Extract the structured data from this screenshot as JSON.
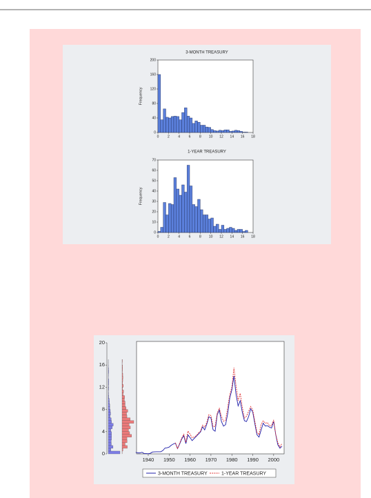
{
  "chart_data": [
    {
      "type": "histogram",
      "title": "3-MONTH TREASURY",
      "y_label": "Frequency",
      "color": "#5b80dc",
      "bins": [
        0,
        0.5,
        1,
        1.5,
        2,
        2.5,
        3,
        3.5,
        4,
        4.5,
        5,
        5.5,
        6,
        6.5,
        7,
        7.5,
        8,
        8.5,
        9,
        9.5,
        10,
        10.5,
        11,
        11.5,
        12,
        12.5,
        13,
        13.5,
        14,
        14.5,
        15,
        15.5,
        16,
        16.5,
        17
      ],
      "values": [
        160,
        35,
        65,
        42,
        40,
        44,
        45,
        44,
        35,
        55,
        68,
        45,
        40,
        25,
        32,
        28,
        20,
        20,
        15,
        14,
        8,
        5,
        4,
        6,
        5,
        7,
        7,
        3,
        4,
        6,
        5,
        3,
        1,
        1
      ],
      "xlim": [
        0,
        18
      ],
      "xticks": [
        0,
        2,
        4,
        6,
        8,
        10,
        12,
        14,
        16,
        18
      ],
      "ylim": [
        0,
        200
      ],
      "yticks": [
        0,
        40,
        80,
        120,
        160,
        200
      ],
      "grid": false
    },
    {
      "type": "histogram",
      "title": "1-YEAR TREASURY",
      "y_label": "Frequency",
      "color": "#5b80dc",
      "bins": [
        0,
        0.5,
        1,
        1.5,
        2,
        2.5,
        3,
        3.5,
        4,
        4.5,
        5,
        5.5,
        6,
        6.5,
        7,
        7.5,
        8,
        8.5,
        9,
        9.5,
        10,
        10.5,
        11,
        11.5,
        12,
        12.5,
        13,
        13.5,
        14,
        14.5,
        15,
        15.5,
        16,
        16.5,
        17
      ],
      "values": [
        1,
        5,
        29,
        17,
        28,
        27,
        53,
        42,
        36,
        46,
        39,
        65,
        45,
        27,
        25,
        32,
        22,
        17,
        17,
        13,
        14,
        6,
        8,
        3,
        7,
        3,
        4,
        5,
        4,
        2,
        3,
        3,
        1,
        2
      ],
      "xlim": [
        0,
        18
      ],
      "xticks": [
        0,
        2,
        4,
        6,
        8,
        10,
        12,
        14,
        16,
        18
      ],
      "ylim": [
        0,
        70
      ],
      "yticks": [
        0,
        10,
        20,
        30,
        40,
        50,
        60,
        70
      ],
      "grid": false
    },
    {
      "type": "line",
      "legend": "bottom",
      "grid": false,
      "x": [
        1934,
        1935,
        1936,
        1937,
        1938,
        1939,
        1940,
        1941,
        1942,
        1943,
        1944,
        1945,
        1946,
        1947,
        1948,
        1949,
        1950,
        1951,
        1952,
        1953,
        1954,
        1955,
        1956,
        1957,
        1958,
        1959,
        1960,
        1961,
        1962,
        1963,
        1964,
        1965,
        1966,
        1967,
        1968,
        1969,
        1970,
        1971,
        1972,
        1973,
        1974,
        1975,
        1976,
        1977,
        1978,
        1979,
        1980,
        1981,
        1982,
        1983,
        1984,
        1985,
        1986,
        1987,
        1988,
        1989,
        1990,
        1991,
        1992,
        1993,
        1994,
        1995,
        1996,
        1997,
        1998,
        1999,
        2000,
        2001,
        2002,
        2003,
        2004
      ],
      "series": [
        {
          "name": "3-MONTH TREASURY",
          "color": "#1c1ca8",
          "style": "solid",
          "values": [
            0.28,
            0.17,
            0.17,
            0.28,
            0.07,
            0.05,
            0.02,
            0.1,
            0.33,
            0.37,
            0.38,
            0.38,
            0.38,
            0.6,
            1.04,
            1.1,
            1.22,
            1.55,
            1.77,
            1.93,
            0.95,
            1.75,
            2.66,
            3.27,
            1.84,
            3.41,
            2.93,
            2.38,
            2.78,
            3.16,
            3.55,
            3.95,
            4.88,
            4.32,
            5.34,
            6.68,
            6.46,
            4.35,
            4.07,
            7.04,
            7.89,
            5.84,
            4.99,
            5.27,
            7.22,
            10.04,
            11.51,
            14.03,
            10.69,
            8.63,
            9.58,
            7.48,
            5.98,
            5.82,
            6.69,
            8.12,
            7.51,
            5.42,
            3.45,
            3.02,
            4.29,
            5.51,
            5.02,
            5.07,
            4.81,
            4.66,
            5.85,
            3.45,
            1.62,
            1.02,
            1.38
          ]
        },
        {
          "name": "1-YEAR TREASURY",
          "color": "#e03030",
          "style": "dashed",
          "values": [
            null,
            null,
            null,
            null,
            null,
            null,
            null,
            null,
            null,
            null,
            null,
            null,
            null,
            null,
            null,
            null,
            null,
            null,
            null,
            2.0,
            0.92,
            1.89,
            2.83,
            3.53,
            2.09,
            4.11,
            3.55,
            2.91,
            3.02,
            3.28,
            3.76,
            4.09,
            5.17,
            4.84,
            5.62,
            7.06,
            6.9,
            4.89,
            4.95,
            7.32,
            8.2,
            6.78,
            5.88,
            6.08,
            8.34,
            10.65,
            12.0,
            15.5,
            12.27,
            9.58,
            10.91,
            8.42,
            6.45,
            6.77,
            7.65,
            8.53,
            7.89,
            5.86,
            3.89,
            3.43,
            5.32,
            5.94,
            5.52,
            5.63,
            5.05,
            5.08,
            6.11,
            3.49,
            2.0,
            1.24,
            1.89
          ]
        }
      ],
      "xlim": [
        1934.4,
        2005
      ],
      "xticks": [
        1940,
        1950,
        1960,
        1970,
        1980,
        1990,
        2000
      ],
      "ylim": [
        0,
        20
      ],
      "yticks": [
        0,
        4,
        8,
        12,
        16,
        20
      ]
    }
  ]
}
